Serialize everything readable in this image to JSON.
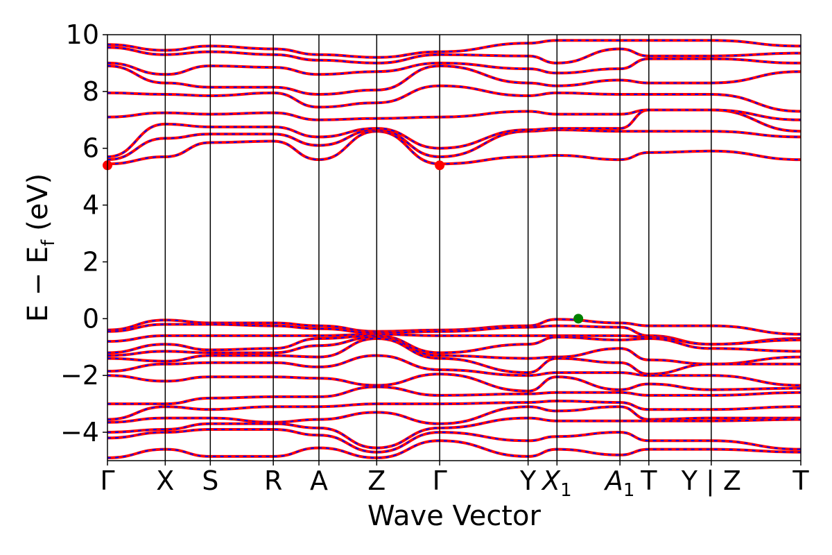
{
  "chart_data": {
    "type": "line",
    "title": "",
    "xlabel": "Wave Vector",
    "ylabel_parts": {
      "main": "E − E",
      "sub": "f",
      "unit": " (eV)"
    },
    "ylim": [
      -5,
      10
    ],
    "xlim": [
      0,
      12
    ],
    "yticks": [
      {
        "value": -4,
        "label": "−4"
      },
      {
        "value": -2,
        "label": "−2"
      },
      {
        "value": 0,
        "label": "0"
      },
      {
        "value": 2,
        "label": "2"
      },
      {
        "value": 4,
        "label": "4"
      },
      {
        "value": 6,
        "label": "6"
      },
      {
        "value": 8,
        "label": "8"
      },
      {
        "value": 10,
        "label": "10"
      }
    ],
    "kpoints": [
      {
        "pos": 0,
        "label": "Γ"
      },
      {
        "pos": 1,
        "label": "X"
      },
      {
        "pos": 1.78,
        "label": "S"
      },
      {
        "pos": 2.87,
        "label": "R"
      },
      {
        "pos": 3.66,
        "label": "A"
      },
      {
        "pos": 4.66,
        "label": "Z"
      },
      {
        "pos": 5.75,
        "label": "Γ"
      },
      {
        "pos": 7.28,
        "label": "Y"
      },
      {
        "pos": 7.78,
        "label": "X",
        "sub": "1"
      },
      {
        "pos": 8.87,
        "label": "A",
        "sub": "1"
      },
      {
        "pos": 9.37,
        "label": "T"
      },
      {
        "pos": 10.45,
        "label": "Y | Z"
      },
      {
        "pos": 12,
        "label": "T"
      }
    ],
    "series_colors": {
      "band_solid": "#ff0000",
      "band_dash": "#0000ff",
      "vbm_marker": "#008000",
      "cbm_marker": "#ff0000"
    },
    "conduction_band_minimum": [
      {
        "x": 0,
        "y": 5.4
      },
      {
        "x": 5.75,
        "y": 5.4
      }
    ],
    "valence_band_maximum": {
      "x": 8.15,
      "y": 0.0
    },
    "bands": [
      [
        5.45,
        5.7,
        6.2,
        6.25,
        5.6,
        6.6,
        5.45,
        5.7,
        5.75,
        5.6,
        5.85,
        5.9,
        5.6,
        5.9
      ],
      [
        5.6,
        6.35,
        6.5,
        6.5,
        6.1,
        6.65,
        5.7,
        6.6,
        6.65,
        6.6,
        6.6,
        6.6,
        6.4,
        6.6
      ],
      [
        5.7,
        6.85,
        6.75,
        6.75,
        6.4,
        6.7,
        6.0,
        6.65,
        6.7,
        6.7,
        7.35,
        7.35,
        6.6,
        6.7
      ],
      [
        7.1,
        7.25,
        7.2,
        7.25,
        7.0,
        7.05,
        7.1,
        7.3,
        7.2,
        7.2,
        7.35,
        7.35,
        7.0,
        7.35
      ],
      [
        7.95,
        7.9,
        7.85,
        7.95,
        7.45,
        7.6,
        8.2,
        7.85,
        7.95,
        7.9,
        7.9,
        7.9,
        7.3,
        7.9
      ],
      [
        8.9,
        8.3,
        8.15,
        8.15,
        7.9,
        8.05,
        8.9,
        8.3,
        8.2,
        8.4,
        8.3,
        8.3,
        8.7,
        8.35
      ],
      [
        9.0,
        8.6,
        8.9,
        8.85,
        8.6,
        8.7,
        9.0,
        8.8,
        8.65,
        8.8,
        9.15,
        9.15,
        9.0,
        8.7
      ],
      [
        9.55,
        9.3,
        9.4,
        9.3,
        9.1,
        9.0,
        9.3,
        9.25,
        9.0,
        9.5,
        9.25,
        9.25,
        9.35,
        9.25
      ],
      [
        9.65,
        9.45,
        9.6,
        9.5,
        9.3,
        9.2,
        9.4,
        9.7,
        9.8,
        9.8,
        9.8,
        9.8,
        9.6,
        9.65
      ],
      [
        -0.4,
        -0.05,
        -0.15,
        -0.15,
        -0.25,
        -0.45,
        -0.4,
        -0.25,
        -0.02,
        -0.15,
        -0.25,
        -0.25,
        -0.55,
        -0.25
      ],
      [
        -0.45,
        -0.2,
        -0.2,
        -0.25,
        -0.35,
        -0.5,
        -0.45,
        -0.3,
        -0.25,
        -0.3,
        -0.6,
        -0.9,
        -0.7,
        -0.6
      ],
      [
        -0.8,
        -0.6,
        -0.6,
        -0.6,
        -0.6,
        -0.55,
        -0.6,
        -0.6,
        -0.6,
        -0.6,
        -0.65,
        -0.9,
        -0.75,
        -0.6
      ],
      [
        -1.2,
        -0.9,
        -1.1,
        -1.05,
        -0.7,
        -0.6,
        -1.2,
        -0.9,
        -0.65,
        -0.75,
        -0.7,
        -1.05,
        -1.15,
        -0.8
      ],
      [
        -1.3,
        -1.15,
        -1.2,
        -1.2,
        -0.95,
        -0.65,
        -1.3,
        -1.4,
        -1.35,
        -1.05,
        -1.45,
        -1.6,
        -1.35,
        -1.85
      ],
      [
        -1.4,
        -1.5,
        -1.3,
        -1.3,
        -1.35,
        -0.7,
        -1.4,
        -1.9,
        -1.4,
        -1.55,
        -1.95,
        -1.6,
        -1.6,
        -1.95
      ],
      [
        -1.85,
        -1.6,
        -1.55,
        -1.55,
        -1.7,
        -1.3,
        -1.8,
        -2.0,
        -1.9,
        -1.9,
        -2.0,
        -2.0,
        -2.35,
        -2.0
      ],
      [
        -2.0,
        -2.2,
        -2.05,
        -2.05,
        -2.1,
        -2.35,
        -1.95,
        -2.55,
        -2.05,
        -2.5,
        -2.3,
        -2.5,
        -2.45,
        -2.5
      ],
      [
        -3.0,
        -3.0,
        -2.8,
        -2.75,
        -2.75,
        -2.4,
        -2.7,
        -2.65,
        -2.6,
        -2.6,
        -2.7,
        -2.7,
        -2.6,
        -2.8
      ],
      [
        -3.55,
        -3.1,
        -3.2,
        -3.1,
        -3.1,
        -3.0,
        -3.0,
        -2.95,
        -2.9,
        -2.95,
        -3.2,
        -3.2,
        -3.1,
        -3.4
      ],
      [
        -3.65,
        -3.5,
        -3.5,
        -3.65,
        -3.55,
        -3.3,
        -3.7,
        -3.1,
        -3.25,
        -3.1,
        -3.55,
        -3.5,
        -3.5,
        -3.5
      ],
      [
        -4.0,
        -3.9,
        -3.7,
        -3.7,
        -3.85,
        -4.55,
        -3.85,
        -3.5,
        -3.6,
        -3.6,
        -3.6,
        -3.6,
        -3.55,
        -3.8
      ],
      [
        -4.2,
        -4.0,
        -3.9,
        -3.9,
        -4.1,
        -4.7,
        -4.0,
        -4.3,
        -4.15,
        -4.0,
        -4.3,
        -4.3,
        -4.6,
        -4.3
      ],
      [
        -4.9,
        -4.6,
        -4.85,
        -4.85,
        -4.55,
        -4.9,
        -4.3,
        -4.85,
        -4.6,
        -4.8,
        -4.6,
        -4.6,
        -4.7,
        -4.9
      ]
    ]
  }
}
